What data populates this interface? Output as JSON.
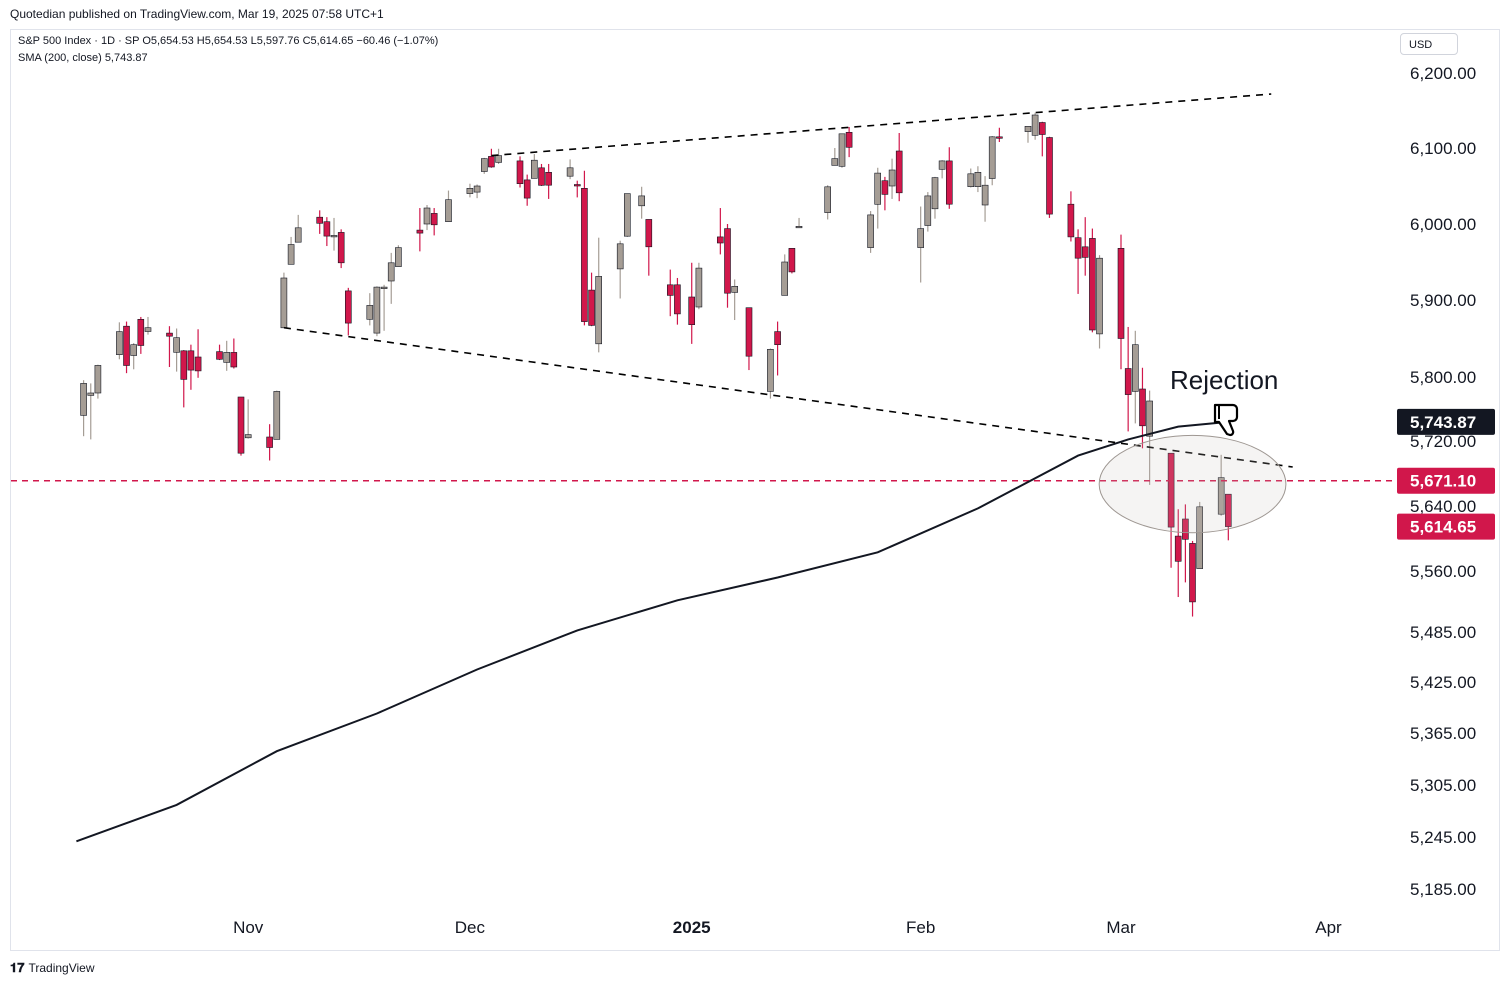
{
  "header": {
    "published": "Quotedian published on TradingView.com, Mar 19, 2025 07:58 UTC+1"
  },
  "legend": {
    "symbol_line": "S&P 500 Index · 1D · SP  O5,654.53  H5,654.53  L5,597.76  C5,614.65  −60.46 (−1.07%)",
    "sma_line": "SMA (200, close)  5,743.87"
  },
  "footer": {
    "brand": "TradingView"
  },
  "price_axis": {
    "currency_label": "USD"
  },
  "colors": {
    "up": "#a59d95",
    "down": "#d1174b",
    "sma": "#131722",
    "level": "#d1174b",
    "trend": "#000000"
  },
  "chart_data": {
    "type": "candlestick",
    "title": "S&P 500 Index · 1D · SP",
    "ohlc_latest": {
      "open": 5654.53,
      "high": 5654.53,
      "low": 5597.76,
      "close": 5614.65,
      "change": -60.46,
      "change_pct": -1.07
    },
    "y_ticks": [
      "6,200.00",
      "6,100.00",
      "6,000.00",
      "5,900.00",
      "5,800.00",
      "5,720.00",
      "5,640.00",
      "5,560.00",
      "5,485.00",
      "5,425.00",
      "5,365.00",
      "5,305.00",
      "5,245.00",
      "5,185.00"
    ],
    "x_ticks": [
      "Nov",
      "Dec",
      "2025",
      "Feb",
      "Mar",
      "Apr"
    ],
    "x_range": [
      "2024-10-08",
      "2025-04-08"
    ],
    "candles": [
      {
        "date": "2024-10-09",
        "o": 5752,
        "h": 5796,
        "l": 5726,
        "c": 5792
      },
      {
        "date": "2024-10-10",
        "o": 5777,
        "h": 5792,
        "l": 5722,
        "c": 5780
      },
      {
        "date": "2024-10-11",
        "o": 5780,
        "h": 5816,
        "l": 5773,
        "c": 5815
      },
      {
        "date": "2024-10-14",
        "o": 5829,
        "h": 5871,
        "l": 5823,
        "c": 5859
      },
      {
        "date": "2024-10-15",
        "o": 5866,
        "h": 5872,
        "l": 5805,
        "c": 5815
      },
      {
        "date": "2024-10-16",
        "o": 5828,
        "h": 5844,
        "l": 5810,
        "c": 5842
      },
      {
        "date": "2024-10-17",
        "o": 5875,
        "h": 5878,
        "l": 5830,
        "c": 5841
      },
      {
        "date": "2024-10-18",
        "o": 5859,
        "h": 5878,
        "l": 5855,
        "c": 5864
      },
      {
        "date": "2024-10-21",
        "o": 5857,
        "h": 5866,
        "l": 5813,
        "c": 5853
      },
      {
        "date": "2024-10-22",
        "o": 5832,
        "h": 5863,
        "l": 5807,
        "c": 5851
      },
      {
        "date": "2024-10-23",
        "o": 5834,
        "h": 5835,
        "l": 5762,
        "c": 5797
      },
      {
        "date": "2024-10-24",
        "o": 5834,
        "h": 5842,
        "l": 5784,
        "c": 5809
      },
      {
        "date": "2024-10-25",
        "o": 5826,
        "h": 5862,
        "l": 5799,
        "c": 5808
      },
      {
        "date": "2024-10-28",
        "o": 5833,
        "h": 5842,
        "l": 5822,
        "c": 5823
      },
      {
        "date": "2024-10-29",
        "o": 5819,
        "h": 5847,
        "l": 5808,
        "c": 5832
      },
      {
        "date": "2024-10-30",
        "o": 5832,
        "h": 5850,
        "l": 5811,
        "c": 5813
      },
      {
        "date": "2024-10-31",
        "o": 5775,
        "h": 5775,
        "l": 5702,
        "c": 5705
      },
      {
        "date": "2024-11-01",
        "o": 5724,
        "h": 5772,
        "l": 5723,
        "c": 5728
      },
      {
        "date": "2024-11-04",
        "o": 5725,
        "h": 5741,
        "l": 5696,
        "c": 5712
      },
      {
        "date": "2024-11-05",
        "o": 5722,
        "h": 5783,
        "l": 5722,
        "c": 5782
      },
      {
        "date": "2024-11-06",
        "o": 5864,
        "h": 5936,
        "l": 5864,
        "c": 5929
      },
      {
        "date": "2024-11-07",
        "o": 5947,
        "h": 5983,
        "l": 5947,
        "c": 5973
      },
      {
        "date": "2024-11-08",
        "o": 5976,
        "h": 6012,
        "l": 5976,
        "c": 5995
      },
      {
        "date": "2024-11-11",
        "o": 6009,
        "h": 6018,
        "l": 5987,
        "c": 6001
      },
      {
        "date": "2024-11-12",
        "o": 6003,
        "h": 6009,
        "l": 5971,
        "c": 5984
      },
      {
        "date": "2024-11-13",
        "o": 5985,
        "h": 6008,
        "l": 5965,
        "c": 5985
      },
      {
        "date": "2024-11-14",
        "o": 5989,
        "h": 5993,
        "l": 5942,
        "c": 5949
      },
      {
        "date": "2024-11-15",
        "o": 5912,
        "h": 5916,
        "l": 5854,
        "c": 5870
      },
      {
        "date": "2024-11-18",
        "o": 5875,
        "h": 5909,
        "l": 5867,
        "c": 5893
      },
      {
        "date": "2024-11-19",
        "o": 5857,
        "h": 5918,
        "l": 5853,
        "c": 5917
      },
      {
        "date": "2024-11-20",
        "o": 5917,
        "h": 5920,
        "l": 5860,
        "c": 5917
      },
      {
        "date": "2024-11-21",
        "o": 5925,
        "h": 5962,
        "l": 5895,
        "c": 5949
      },
      {
        "date": "2024-11-22",
        "o": 5944,
        "h": 5972,
        "l": 5944,
        "c": 5969
      },
      {
        "date": "2024-11-25",
        "o": 5992,
        "h": 6021,
        "l": 5964,
        "c": 5988
      },
      {
        "date": "2024-11-26",
        "o": 6000,
        "h": 6025,
        "l": 5992,
        "c": 6021
      },
      {
        "date": "2024-11-27",
        "o": 6014,
        "h": 6021,
        "l": 5985,
        "c": 5999
      },
      {
        "date": "2024-11-29",
        "o": 6003,
        "h": 6044,
        "l": 6003,
        "c": 6032
      },
      {
        "date": "2024-12-02",
        "o": 6040,
        "h": 6053,
        "l": 6035,
        "c": 6047
      },
      {
        "date": "2024-12-03",
        "o": 6042,
        "h": 6052,
        "l": 6034,
        "c": 6050
      },
      {
        "date": "2024-12-04",
        "o": 6069,
        "h": 6087,
        "l": 6066,
        "c": 6086
      },
      {
        "date": "2024-12-05",
        "o": 6089,
        "h": 6099,
        "l": 6074,
        "c": 6075
      },
      {
        "date": "2024-12-06",
        "o": 6081,
        "h": 6099,
        "l": 6079,
        "c": 6090
      },
      {
        "date": "2024-12-09",
        "o": 6083,
        "h": 6089,
        "l": 6048,
        "c": 6053
      },
      {
        "date": "2024-12-10",
        "o": 6058,
        "h": 6065,
        "l": 6024,
        "c": 6034
      },
      {
        "date": "2024-12-11",
        "o": 6060,
        "h": 6092,
        "l": 6060,
        "c": 6084
      },
      {
        "date": "2024-12-12",
        "o": 6074,
        "h": 6079,
        "l": 6050,
        "c": 6051
      },
      {
        "date": "2024-12-13",
        "o": 6068,
        "h": 6079,
        "l": 6033,
        "c": 6051
      },
      {
        "date": "2024-12-16",
        "o": 6063,
        "h": 6085,
        "l": 6059,
        "c": 6074
      },
      {
        "date": "2024-12-17",
        "o": 6052,
        "h": 6057,
        "l": 6035,
        "c": 6050
      },
      {
        "date": "2024-12-18",
        "o": 6047,
        "h": 6070,
        "l": 5867,
        "c": 5872
      },
      {
        "date": "2024-12-19",
        "o": 5913,
        "h": 5936,
        "l": 5866,
        "c": 5867
      },
      {
        "date": "2024-12-20",
        "o": 5843,
        "h": 5982,
        "l": 5832,
        "c": 5931
      },
      {
        "date": "2024-12-23",
        "o": 5941,
        "h": 5978,
        "l": 5902,
        "c": 5974
      },
      {
        "date": "2024-12-24",
        "o": 5984,
        "h": 6040,
        "l": 5983,
        "c": 6040
      },
      {
        "date": "2024-12-26",
        "o": 6024,
        "h": 6049,
        "l": 6007,
        "c": 6037
      },
      {
        "date": "2024-12-27",
        "o": 6006,
        "h": 6006,
        "l": 5932,
        "c": 5970
      },
      {
        "date": "2024-12-30",
        "o": 5920,
        "h": 5940,
        "l": 5879,
        "c": 5906
      },
      {
        "date": "2024-12-31",
        "o": 5920,
        "h": 5929,
        "l": 5868,
        "c": 5882
      },
      {
        "date": "2025-01-02",
        "o": 5904,
        "h": 5949,
        "l": 5843,
        "c": 5868
      },
      {
        "date": "2025-01-03",
        "o": 5891,
        "h": 5949,
        "l": 5888,
        "c": 5942
      },
      {
        "date": "2025-01-06",
        "o": 5983,
        "h": 6021,
        "l": 5960,
        "c": 5975
      },
      {
        "date": "2025-01-07",
        "o": 5994,
        "h": 6000,
        "l": 5890,
        "c": 5909
      },
      {
        "date": "2025-01-08",
        "o": 5910,
        "h": 5927,
        "l": 5874,
        "c": 5918
      },
      {
        "date": "2025-01-10",
        "o": 5890,
        "h": 5890,
        "l": 5809,
        "c": 5827
      },
      {
        "date": "2025-01-13",
        "o": 5782,
        "h": 5837,
        "l": 5773,
        "c": 5836
      },
      {
        "date": "2025-01-14",
        "o": 5859,
        "h": 5872,
        "l": 5802,
        "c": 5842
      },
      {
        "date": "2025-01-15",
        "o": 5906,
        "h": 5960,
        "l": 5906,
        "c": 5950
      },
      {
        "date": "2025-01-16",
        "o": 5968,
        "h": 5964,
        "l": 5935,
        "c": 5937
      },
      {
        "date": "2025-01-17",
        "o": 5995,
        "h": 6008,
        "l": 5995,
        "c": 5997
      },
      {
        "date": "2025-01-21",
        "o": 6015,
        "h": 6051,
        "l": 6006,
        "c": 6049
      },
      {
        "date": "2025-01-22",
        "o": 6077,
        "h": 6100,
        "l": 6077,
        "c": 6086
      },
      {
        "date": "2025-01-23",
        "o": 6076,
        "h": 6119,
        "l": 6074,
        "c": 6119
      },
      {
        "date": "2025-01-24",
        "o": 6121,
        "h": 6128,
        "l": 6088,
        "c": 6101
      },
      {
        "date": "2025-01-27",
        "o": 5969,
        "h": 6017,
        "l": 5962,
        "c": 6012
      },
      {
        "date": "2025-01-28",
        "o": 6026,
        "h": 6074,
        "l": 5994,
        "c": 6067
      },
      {
        "date": "2025-01-29",
        "o": 6057,
        "h": 6062,
        "l": 6018,
        "c": 6039
      },
      {
        "date": "2025-01-30",
        "o": 6050,
        "h": 6086,
        "l": 6033,
        "c": 6071
      },
      {
        "date": "2025-01-31",
        "o": 6096,
        "h": 6120,
        "l": 6030,
        "c": 6041
      },
      {
        "date": "2025-02-03",
        "o": 5969,
        "h": 6023,
        "l": 5923,
        "c": 5994
      },
      {
        "date": "2025-02-04",
        "o": 5998,
        "h": 6042,
        "l": 5990,
        "c": 6037
      },
      {
        "date": "2025-02-05",
        "o": 6020,
        "h": 6062,
        "l": 6007,
        "c": 6061
      },
      {
        "date": "2025-02-06",
        "o": 6072,
        "h": 6084,
        "l": 6060,
        "c": 6083
      },
      {
        "date": "2025-02-07",
        "o": 6083,
        "h": 6101,
        "l": 6020,
        "c": 6026
      },
      {
        "date": "2025-02-10",
        "o": 6049,
        "h": 6073,
        "l": 6048,
        "c": 6066
      },
      {
        "date": "2025-02-11",
        "o": 6049,
        "h": 6076,
        "l": 6042,
        "c": 6068
      },
      {
        "date": "2025-02-12",
        "o": 6025,
        "h": 6063,
        "l": 6003,
        "c": 6051
      },
      {
        "date": "2025-02-13",
        "o": 6060,
        "h": 6116,
        "l": 6051,
        "c": 6115
      },
      {
        "date": "2025-02-14",
        "o": 6115,
        "h": 6127,
        "l": 6108,
        "c": 6114
      },
      {
        "date": "2025-02-18",
        "o": 6122,
        "h": 6129,
        "l": 6107,
        "c": 6129
      },
      {
        "date": "2025-02-19",
        "o": 6117,
        "h": 6147,
        "l": 6111,
        "c": 6144
      },
      {
        "date": "2025-02-20",
        "o": 6134,
        "h": 6135,
        "l": 6089,
        "c": 6118
      },
      {
        "date": "2025-02-21",
        "o": 6114,
        "h": 6115,
        "l": 6008,
        "c": 6013
      },
      {
        "date": "2025-02-24",
        "o": 6026,
        "h": 6043,
        "l": 5977,
        "c": 5983
      },
      {
        "date": "2025-02-25",
        "o": 5982,
        "h": 5993,
        "l": 5908,
        "c": 5955
      },
      {
        "date": "2025-02-26",
        "o": 5970,
        "h": 6009,
        "l": 5932,
        "c": 5956
      },
      {
        "date": "2025-02-27",
        "o": 5981,
        "h": 5994,
        "l": 5858,
        "c": 5861
      },
      {
        "date": "2025-02-28",
        "o": 5856,
        "h": 5959,
        "l": 5837,
        "c": 5955
      },
      {
        "date": "2025-03-03",
        "o": 5968,
        "h": 5986,
        "l": 5810,
        "c": 5850
      },
      {
        "date": "2025-03-04",
        "o": 5811,
        "h": 5865,
        "l": 5732,
        "c": 5778
      },
      {
        "date": "2025-03-05",
        "o": 5782,
        "h": 5860,
        "l": 5742,
        "c": 5842
      },
      {
        "date": "2025-03-06",
        "o": 5785,
        "h": 5812,
        "l": 5711,
        "c": 5739
      },
      {
        "date": "2025-03-07",
        "o": 5726,
        "h": 5783,
        "l": 5666,
        "c": 5770
      },
      {
        "date": "2025-03-10",
        "o": 5705,
        "h": 5705,
        "l": 5564,
        "c": 5614
      },
      {
        "date": "2025-03-11",
        "o": 5603,
        "h": 5636,
        "l": 5528,
        "c": 5572
      },
      {
        "date": "2025-03-12",
        "o": 5624,
        "h": 5642,
        "l": 5546,
        "c": 5599
      },
      {
        "date": "2025-03-13",
        "o": 5594,
        "h": 5597,
        "l": 5504,
        "c": 5522
      },
      {
        "date": "2025-03-14",
        "o": 5563,
        "h": 5645,
        "l": 5563,
        "c": 5639
      },
      {
        "date": "2025-03-17",
        "o": 5630,
        "h": 5703,
        "l": 5628,
        "c": 5675
      },
      {
        "date": "2025-03-18",
        "o": 5654.53,
        "h": 5654.53,
        "l": 5597.76,
        "c": 5614.65
      }
    ],
    "sma": {
      "name": "SMA (200, close)",
      "last_value": 5743.87,
      "points": [
        {
          "date": "2024-10-08",
          "v": 5240
        },
        {
          "date": "2024-10-22",
          "v": 5282
        },
        {
          "date": "2024-11-05",
          "v": 5344
        },
        {
          "date": "2024-11-19",
          "v": 5388
        },
        {
          "date": "2024-12-03",
          "v": 5440
        },
        {
          "date": "2024-12-17",
          "v": 5487
        },
        {
          "date": "2024-12-31",
          "v": 5524
        },
        {
          "date": "2025-01-14",
          "v": 5552
        },
        {
          "date": "2025-01-28",
          "v": 5583
        },
        {
          "date": "2025-02-11",
          "v": 5637
        },
        {
          "date": "2025-02-25",
          "v": 5702
        },
        {
          "date": "2025-03-04",
          "v": 5722
        },
        {
          "date": "2025-03-11",
          "v": 5738
        },
        {
          "date": "2025-03-18",
          "v": 5743.87
        }
      ]
    },
    "trendlines": [
      {
        "name": "upper-trendline",
        "start": {
          "date": "2024-12-05",
          "v": 6090
        },
        "end": {
          "date": "2025-03-24",
          "v": 6172
        }
      },
      {
        "name": "lower-trendline",
        "start": {
          "date": "2024-11-06",
          "v": 5864
        },
        "end": {
          "date": "2025-03-27",
          "v": 5688
        }
      }
    ],
    "level_line": {
      "value": 5671.1,
      "label": "5,671.10"
    },
    "price_labels": [
      {
        "name": "sma-price-label",
        "value": 5743.87,
        "label": "5,743.87",
        "bg": "#131722"
      },
      {
        "name": "level-price-label",
        "value": 5671.1,
        "label": "5,671.10",
        "bg": "#d1174b"
      },
      {
        "name": "last-price-label",
        "value": 5614.65,
        "label": "5,614.65",
        "bg": "#d1174b"
      }
    ],
    "annotation": {
      "text": "Rejection",
      "icon": "thumbs-down-icon",
      "ellipse": {
        "center": {
          "date": "2025-03-13",
          "v": 5667
        },
        "rx_days": 9,
        "ry_units": 60
      }
    }
  }
}
